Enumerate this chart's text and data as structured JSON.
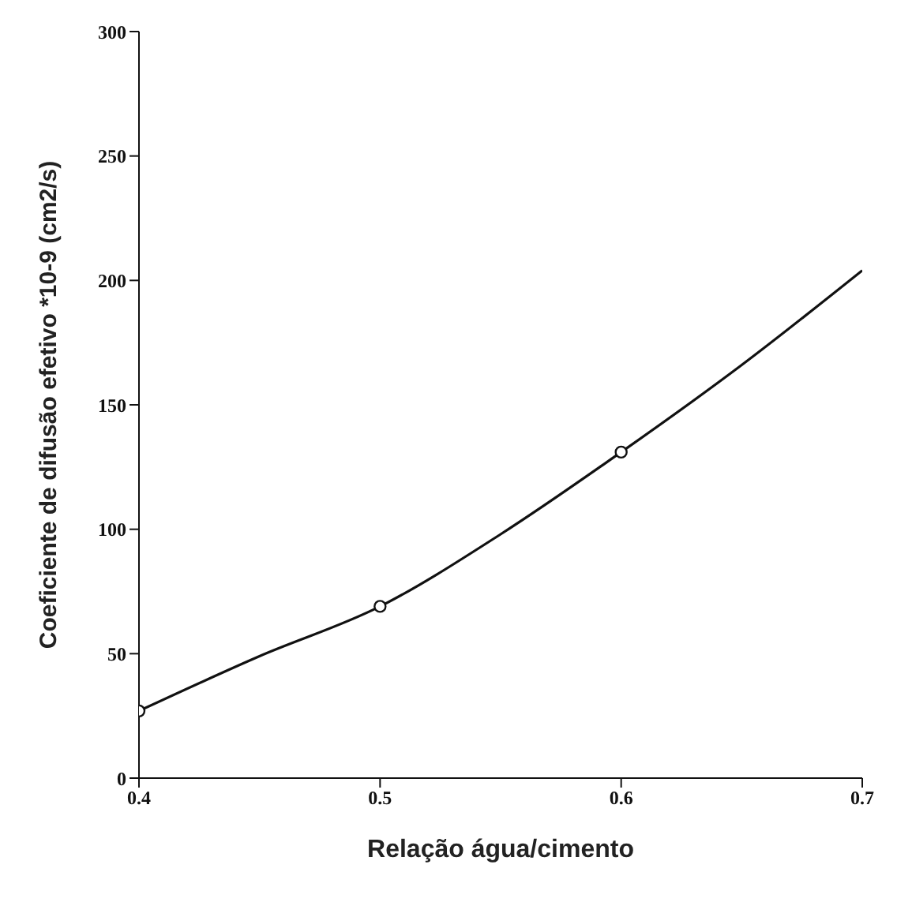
{
  "chart_data": {
    "type": "line",
    "xlabel": "Relação água/cimento",
    "ylabel": "Coeficiente de difusão efetivo *10-9 (cm2/s)",
    "xlim": [
      0.4,
      0.7
    ],
    "xticks": [
      0.4,
      0.5,
      0.6,
      0.7
    ],
    "ylim": [
      0,
      300
    ],
    "yticks": [
      0,
      50,
      100,
      150,
      200,
      250,
      300
    ],
    "series": [
      {
        "color": "#111111",
        "marker": "none",
        "x": [
          0.4,
          0.45,
          0.5,
          0.55,
          0.6,
          0.65,
          0.7
        ],
        "values": [
          27,
          49,
          69,
          98,
          131,
          166,
          204
        ]
      },
      {
        "type": "scatter",
        "color": "#111111",
        "marker": "circle",
        "x": [
          0.4,
          0.5,
          0.6
        ],
        "values": [
          27,
          69,
          131
        ]
      }
    ]
  }
}
